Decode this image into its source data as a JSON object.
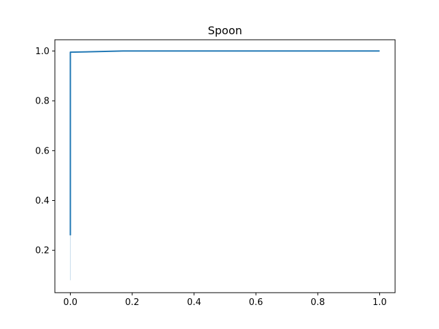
{
  "chart_data": {
    "type": "line",
    "title": "Spoon",
    "xlabel": "",
    "ylabel": "",
    "xlim": [
      -0.05,
      1.05
    ],
    "ylim": [
      0.03,
      1.045
    ],
    "x_ticks": [
      "0.0",
      "0.2",
      "0.4",
      "0.6",
      "0.8",
      "1.0"
    ],
    "y_ticks": [
      "0.2",
      "0.4",
      "0.6",
      "0.8",
      "1.0"
    ],
    "grid": false,
    "legend": "none",
    "series": [
      {
        "color": "#1f77b4",
        "x": [
          0.0,
          0.0,
          0.0,
          0.17,
          1.0
        ],
        "y": [
          0.26,
          0.995,
          0.995,
          1.0,
          1.0
        ]
      }
    ],
    "band": {
      "color": "#1f77b4",
      "x": [
        0.0,
        0.0
      ],
      "y_low": [
        0.08,
        0.995
      ],
      "y_high": [
        0.26,
        0.995
      ]
    }
  }
}
